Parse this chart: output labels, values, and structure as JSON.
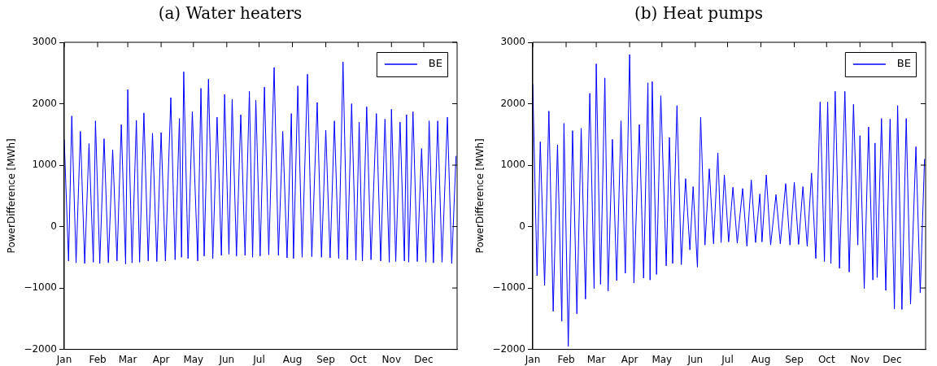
{
  "chart_data": [
    {
      "type": "line",
      "title": "(a) Water heaters",
      "ylabel": "PowerDifference [MWh]",
      "legend": "top right",
      "grid": false,
      "marker": "none",
      "line_style": "solid",
      "xlim": [
        "--01-01",
        "--12-31"
      ],
      "xticks": [
        {
          "value": "--01-01",
          "label": "Jan"
        },
        {
          "value": "--02-01",
          "label": "Feb"
        },
        {
          "value": "--03-01",
          "label": "Mar"
        },
        {
          "value": "--04-01",
          "label": "Apr"
        },
        {
          "value": "--05-01",
          "label": "May"
        },
        {
          "value": "--06-01",
          "label": "Jun"
        },
        {
          "value": "--07-01",
          "label": "Jul"
        },
        {
          "value": "--08-01",
          "label": "Aug"
        },
        {
          "value": "--09-01",
          "label": "Sep"
        },
        {
          "value": "--10-01",
          "label": "Oct"
        },
        {
          "value": "--11-01",
          "label": "Nov"
        },
        {
          "value": "--12-01",
          "label": "Dec"
        }
      ],
      "ylim": [
        -2000,
        3000
      ],
      "yticks": [
        -2000,
        -1000,
        0,
        1000,
        2000,
        3000
      ],
      "x": [
        "--01-01",
        "--01-05",
        "--01-08",
        "--01-12",
        "--01-16",
        "--01-20",
        "--01-24",
        "--01-28",
        "--01-30",
        "--02-03",
        "--02-07",
        "--02-11",
        "--02-15",
        "--02-19",
        "--02-23",
        "--02-27",
        "--03-01",
        "--03-05",
        "--03-09",
        "--03-12",
        "--03-16",
        "--03-20",
        "--03-24",
        "--03-28",
        "--04-01",
        "--04-05",
        "--04-10",
        "--04-14",
        "--04-18",
        "--04-20",
        "--04-22",
        "--04-26",
        "--04-30",
        "--05-05",
        "--05-08",
        "--05-11",
        "--05-15",
        "--05-19",
        "--05-23",
        "--05-27",
        "--05-30",
        "--06-03",
        "--06-06",
        "--06-10",
        "--06-14",
        "--06-18",
        "--06-22",
        "--06-25",
        "--06-28",
        "--07-02",
        "--07-06",
        "--07-10",
        "--07-15",
        "--07-19",
        "--07-23",
        "--07-27",
        "--07-31",
        "--08-02",
        "--08-06",
        "--08-10",
        "--08-15",
        "--08-19",
        "--08-24",
        "--08-28",
        "--09-01",
        "--09-05",
        "--09-09",
        "--09-13",
        "--09-17",
        "--09-21",
        "--09-25",
        "--09-29",
        "--10-02",
        "--10-05",
        "--10-09",
        "--10-13",
        "--10-18",
        "--10-22",
        "--10-26",
        "--10-30",
        "--11-01",
        "--11-05",
        "--11-09",
        "--11-13",
        "--11-15",
        "--11-17",
        "--11-21",
        "--11-25",
        "--11-29",
        "--12-03",
        "--12-06",
        "--12-10",
        "--12-14",
        "--12-18",
        "--12-23",
        "--12-27",
        "--12-31"
      ],
      "series": [
        {
          "name": "BE",
          "color": "#0000ff",
          "values": [
            1420,
            -560,
            1800,
            -590,
            1550,
            -600,
            1350,
            -580,
            1720,
            -600,
            1430,
            -590,
            1250,
            -560,
            1660,
            -610,
            2230,
            -590,
            1730,
            -580,
            1850,
            -560,
            1520,
            -570,
            1530,
            -560,
            2100,
            -540,
            1760,
            -500,
            2520,
            -520,
            1870,
            -560,
            2250,
            -480,
            2400,
            -520,
            1780,
            -470,
            2150,
            -450,
            2070,
            -480,
            1820,
            -470,
            2200,
            -500,
            2060,
            -480,
            2270,
            -460,
            2590,
            -470,
            1550,
            -510,
            1840,
            -520,
            2290,
            -500,
            2480,
            -490,
            2020,
            -500,
            1570,
            -510,
            1720,
            -520,
            2680,
            -540,
            2000,
            -550,
            1700,
            -560,
            1950,
            -540,
            1840,
            -560,
            1750,
            -580,
            1910,
            -570,
            1700,
            -560,
            1820,
            -580,
            1870,
            -570,
            1270,
            -580,
            1720,
            -590,
            1720,
            -580,
            1780,
            -600,
            1150
          ]
        }
      ]
    },
    {
      "type": "line",
      "title": "(b) Heat pumps",
      "ylabel": "PowerDifference [MWh]",
      "legend": "top right",
      "grid": false,
      "marker": "none",
      "line_style": "solid",
      "xlim": [
        "--01-01",
        "--12-31"
      ],
      "xticks": [
        {
          "value": "--01-01",
          "label": "Jan"
        },
        {
          "value": "--02-01",
          "label": "Feb"
        },
        {
          "value": "--03-01",
          "label": "Mar"
        },
        {
          "value": "--04-01",
          "label": "Apr"
        },
        {
          "value": "--05-01",
          "label": "May"
        },
        {
          "value": "--06-01",
          "label": "Jun"
        },
        {
          "value": "--07-01",
          "label": "Jul"
        },
        {
          "value": "--08-01",
          "label": "Aug"
        },
        {
          "value": "--09-01",
          "label": "Sep"
        },
        {
          "value": "--10-01",
          "label": "Oct"
        },
        {
          "value": "--11-01",
          "label": "Nov"
        },
        {
          "value": "--12-01",
          "label": "Dec"
        }
      ],
      "ylim": [
        -2000,
        3000
      ],
      "yticks": [
        -2000,
        -1000,
        0,
        1000,
        2000,
        3000
      ],
      "x": [
        "--01-01",
        "--01-05",
        "--01-08",
        "--01-12",
        "--01-16",
        "--01-20",
        "--01-24",
        "--01-28",
        "--01-30",
        "--02-03",
        "--02-07",
        "--02-11",
        "--02-15",
        "--02-19",
        "--02-23",
        "--02-27",
        "--03-01",
        "--03-05",
        "--03-09",
        "--03-12",
        "--03-16",
        "--03-20",
        "--03-24",
        "--03-28",
        "--04-01",
        "--04-05",
        "--04-10",
        "--04-14",
        "--04-18",
        "--04-20",
        "--04-22",
        "--04-26",
        "--04-30",
        "--05-05",
        "--05-08",
        "--05-11",
        "--05-15",
        "--05-19",
        "--05-23",
        "--05-27",
        "--05-30",
        "--06-03",
        "--06-06",
        "--06-10",
        "--06-14",
        "--06-18",
        "--06-22",
        "--06-25",
        "--06-28",
        "--07-02",
        "--07-06",
        "--07-10",
        "--07-15",
        "--07-19",
        "--07-23",
        "--07-27",
        "--07-31",
        "--08-02",
        "--08-06",
        "--08-10",
        "--08-15",
        "--08-19",
        "--08-24",
        "--08-28",
        "--09-01",
        "--09-05",
        "--09-09",
        "--09-13",
        "--09-17",
        "--09-21",
        "--09-25",
        "--09-29",
        "--10-02",
        "--10-05",
        "--10-09",
        "--10-13",
        "--10-18",
        "--10-22",
        "--10-26",
        "--10-30",
        "--11-01",
        "--11-05",
        "--11-09",
        "--11-13",
        "--11-15",
        "--11-17",
        "--11-21",
        "--11-25",
        "--11-29",
        "--12-03",
        "--12-06",
        "--12-10",
        "--12-14",
        "--12-18",
        "--12-23",
        "--12-27",
        "--12-31"
      ],
      "series": [
        {
          "name": "BE",
          "color": "#0000ff",
          "values": [
            2320,
            -800,
            1380,
            -960,
            1880,
            -1380,
            1330,
            -1540,
            1680,
            -1950,
            1560,
            -1420,
            1600,
            -1180,
            2170,
            -1010,
            2650,
            -940,
            2420,
            -1050,
            1420,
            -880,
            1720,
            -760,
            2800,
            -920,
            1660,
            -840,
            2340,
            -870,
            2360,
            -780,
            2130,
            -640,
            1450,
            -600,
            1970,
            -620,
            780,
            -380,
            650,
            -660,
            1780,
            -300,
            940,
            -280,
            1200,
            -260,
            840,
            -250,
            640,
            -270,
            620,
            -320,
            760,
            -260,
            530,
            -250,
            840,
            -300,
            520,
            -280,
            700,
            -300,
            720,
            -290,
            650,
            -320,
            870,
            -520,
            2030,
            -570,
            2030,
            -600,
            2200,
            -680,
            2200,
            -740,
            1990,
            -300,
            1480,
            -1010,
            1620,
            -870,
            1360,
            -830,
            1760,
            -1040,
            1750,
            -1340,
            1970,
            -1350,
            1760,
            -1260,
            1300,
            -1080,
            1100
          ]
        }
      ]
    }
  ]
}
